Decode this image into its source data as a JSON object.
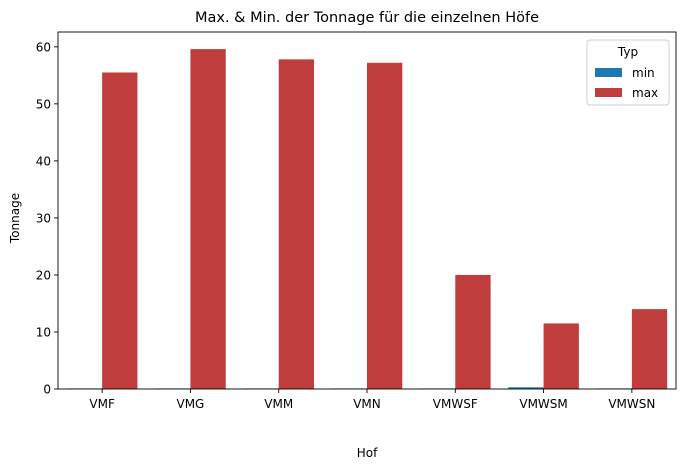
{
  "chart_data": {
    "type": "bar",
    "title": "Max. & Min. der Tonnage für die einzelnen Höfe",
    "xlabel": "Hof",
    "ylabel": "Tonnage",
    "categories": [
      "VMF",
      "VMG",
      "VMM",
      "VMN",
      "VMWSF",
      "VMWSM",
      "VMWSN"
    ],
    "series": [
      {
        "name": "min",
        "color": "#1f77b4",
        "values": [
          0.1,
          0.1,
          0.1,
          0.1,
          0.1,
          0.3,
          0.1
        ]
      },
      {
        "name": "max",
        "color": "#c03d3e",
        "values": [
          55.5,
          59.6,
          57.8,
          57.2,
          20.0,
          11.5,
          14.0
        ]
      }
    ],
    "ylim": [
      0,
      62.6
    ],
    "yticks": [
      0,
      10,
      20,
      30,
      40,
      50,
      60
    ],
    "grid": false,
    "legend": {
      "title": "Typ",
      "position": "top-right"
    }
  }
}
